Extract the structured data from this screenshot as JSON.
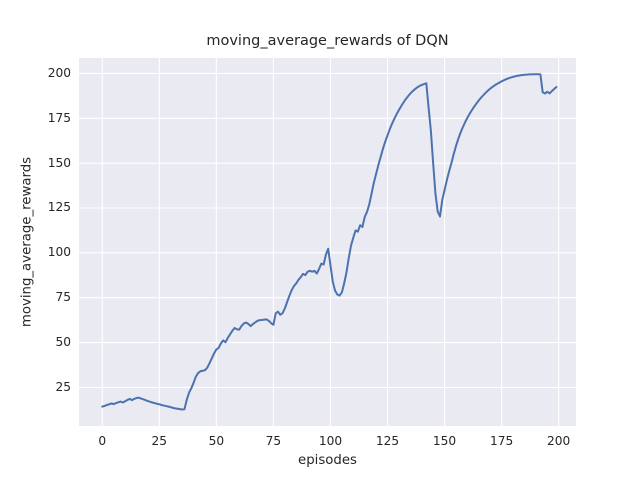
{
  "chart_data": {
    "type": "line",
    "title": "moving_average_rewards of DQN",
    "xlabel": "episodes",
    "ylabel": "moving_average_rewards",
    "x_ticks": [
      0,
      25,
      50,
      75,
      100,
      125,
      150,
      175,
      200
    ],
    "y_ticks": [
      25,
      50,
      75,
      100,
      125,
      150,
      175,
      200
    ],
    "xlim": [
      -10.2,
      207.6
    ],
    "ylim": [
      3.5,
      208.6
    ],
    "grid": true,
    "legend": false,
    "style": {
      "line_color": "#4c72b0",
      "axes_background": "#eaeaf2",
      "grid_color": "#ffffff",
      "text_color": "#262626"
    },
    "series": [
      {
        "name": "DQN moving average reward",
        "x_start": 0,
        "x_step": 1,
        "y": [
          14.3,
          14.7,
          15.2,
          15.6,
          16.1,
          15.7,
          16.2,
          16.7,
          17.1,
          16.6,
          17.3,
          18.0,
          18.6,
          17.9,
          18.6,
          19.1,
          19.3,
          18.8,
          18.4,
          17.9,
          17.4,
          17.0,
          16.6,
          16.2,
          15.9,
          15.6,
          15.2,
          14.9,
          14.6,
          14.3,
          14.0,
          13.6,
          13.3,
          13.1,
          12.9,
          12.7,
          12.8,
          18.0,
          22.0,
          24.5,
          27.5,
          31.0,
          33.0,
          34.0,
          34.3,
          34.6,
          36.0,
          38.5,
          41.2,
          44.0,
          46.2,
          47.1,
          49.6,
          51.2,
          50.2,
          52.6,
          54.6,
          56.6,
          58.1,
          57.4,
          57.2,
          59.2,
          60.6,
          61.2,
          60.4,
          59.2,
          60.3,
          61.2,
          62.1,
          62.5,
          62.6,
          62.8,
          62.9,
          62.1,
          60.8,
          59.9,
          66.3,
          67.2,
          65.5,
          66.4,
          69.0,
          72.6,
          76.1,
          79.2,
          81.5,
          83.0,
          85.0,
          86.5,
          88.3,
          87.6,
          89.5,
          90.0,
          89.5,
          90.0,
          88.5,
          91.0,
          94.0,
          93.5,
          99.0,
          102.3,
          93.0,
          84.0,
          79.0,
          76.8,
          76.2,
          78.0,
          83.0,
          89.0,
          97.0,
          104.0,
          108.5,
          112.5,
          111.8,
          115.4,
          114.4,
          120.0,
          122.8,
          127.0,
          133.0,
          139.0,
          144.0,
          149.0,
          153.5,
          158.0,
          162.0,
          165.5,
          169.0,
          172.0,
          174.8,
          177.3,
          179.6,
          181.8,
          183.8,
          185.7,
          187.3,
          188.8,
          190.1,
          191.2,
          192.2,
          193.0,
          193.6,
          194.1,
          194.5,
          181.0,
          168.0,
          150.0,
          133.0,
          123.0,
          120.3,
          129.5,
          135.0,
          140.5,
          145.5,
          150.0,
          155.0,
          159.5,
          163.5,
          167.0,
          170.0,
          172.8,
          175.3,
          177.5,
          179.6,
          181.5,
          183.3,
          185.0,
          186.5,
          187.9,
          189.2,
          190.4,
          191.5,
          192.5,
          193.4,
          194.2,
          194.9,
          195.6,
          196.2,
          196.8,
          197.3,
          197.7,
          198.1,
          198.4,
          198.7,
          198.9,
          199.1,
          199.25,
          199.35,
          199.45,
          199.5,
          199.55,
          199.55,
          199.55,
          199.5,
          189.5,
          188.8,
          189.8,
          188.9,
          190.1,
          191.3,
          192.4
        ]
      }
    ]
  }
}
